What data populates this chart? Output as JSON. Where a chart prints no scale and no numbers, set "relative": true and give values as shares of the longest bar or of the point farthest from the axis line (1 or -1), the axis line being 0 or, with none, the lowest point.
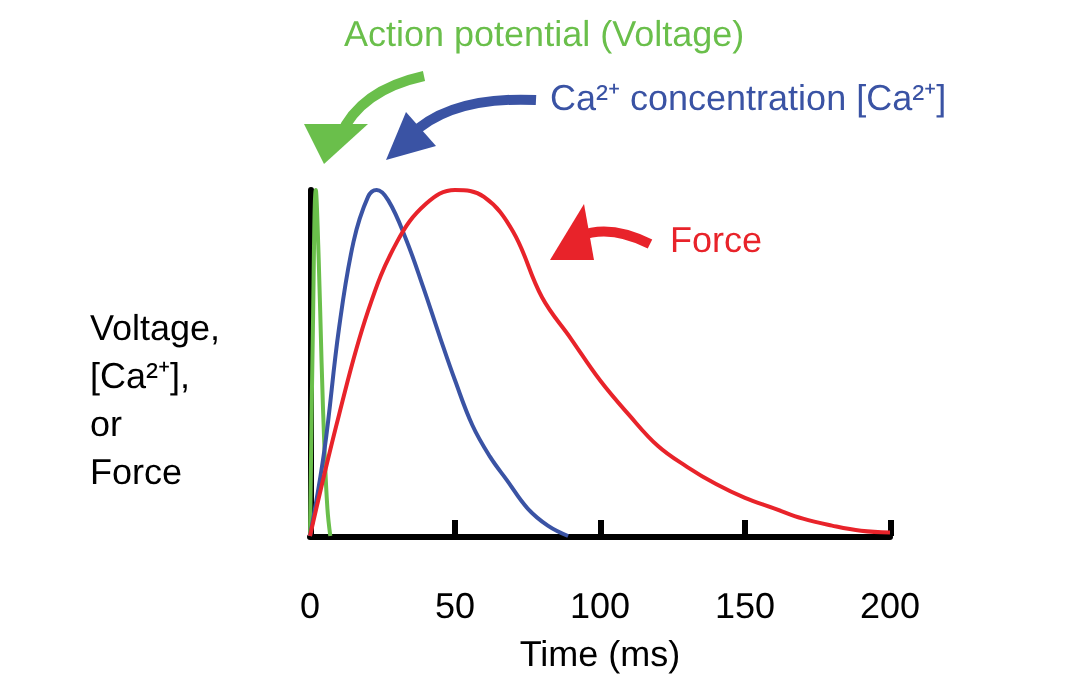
{
  "chart_data": {
    "type": "line",
    "relative": true,
    "xlabel": "Time (ms)",
    "ylabel": "Voltage, [Ca²⁺], or Force",
    "xlim": [
      0,
      200
    ],
    "xticks": [
      0,
      50,
      100,
      150,
      200
    ],
    "grid": false,
    "marker": "none",
    "line_style": "solid",
    "legend": "top right",
    "series": [
      {
        "name": "Action potential (Voltage)",
        "color": "#6abf4b",
        "x": [
          0,
          1,
          2,
          3,
          4,
          5,
          6,
          7
        ],
        "values": [
          0,
          0.6,
          1,
          0.8,
          0.5,
          0.25,
          0.08,
          0
        ]
      },
      {
        "name": "Ca²⁺ concentration [Ca²⁺]",
        "color": "#3a53a4",
        "x": [
          0,
          5,
          10,
          15,
          20,
          23,
          27,
          33,
          39,
          45,
          50,
          56,
          62,
          68,
          75,
          82,
          89
        ],
        "values": [
          0,
          0.25,
          0.6,
          0.85,
          0.98,
          1,
          0.97,
          0.86,
          0.72,
          0.57,
          0.45,
          0.32,
          0.23,
          0.16,
          0.08,
          0.03,
          0
        ]
      },
      {
        "name": "Force",
        "color": "#e8232a",
        "x": [
          0,
          10,
          20,
          30,
          40,
          50,
          60,
          70,
          80,
          90,
          100,
          110,
          120,
          130,
          140,
          150,
          160,
          170,
          180,
          190,
          200
        ],
        "values": [
          0,
          0.35,
          0.65,
          0.85,
          0.96,
          1,
          0.98,
          0.88,
          0.69,
          0.57,
          0.45,
          0.35,
          0.26,
          0.2,
          0.15,
          0.11,
          0.08,
          0.05,
          0.03,
          0.015,
          0.01
        ]
      }
    ]
  }
}
